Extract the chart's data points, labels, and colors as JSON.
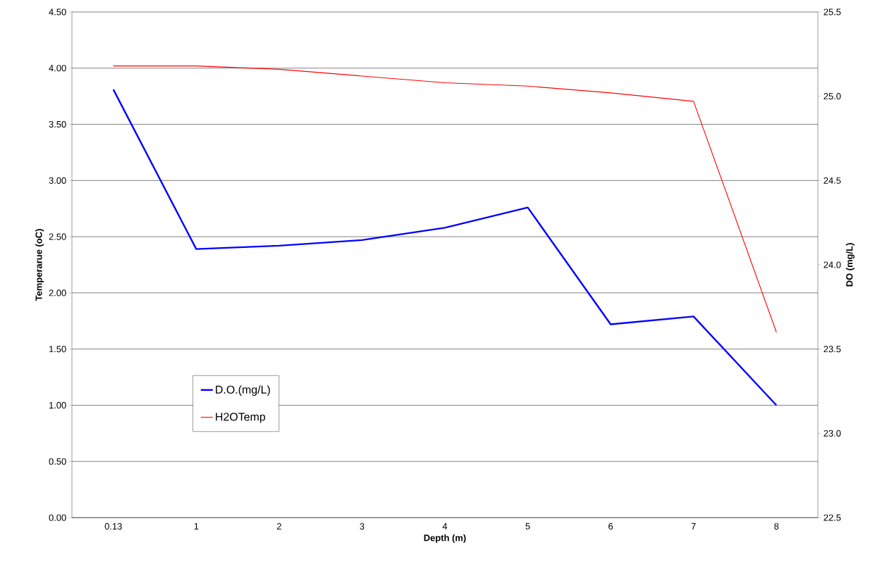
{
  "chart_data": {
    "type": "line",
    "xlabel": "Depth (m)",
    "ylabel": "Temperarue (oC)",
    "y2label": "DO (mg/L)",
    "categories": [
      "0.13",
      "1",
      "2",
      "3",
      "4",
      "5",
      "6",
      "7",
      "8"
    ],
    "series": [
      {
        "name": "D.O.(mg/L)",
        "color": "#0000ff",
        "values": [
          3.81,
          2.39,
          2.42,
          2.47,
          2.58,
          2.76,
          1.72,
          1.79,
          1.0
        ]
      },
      {
        "name": "H2OTemp",
        "color": "#ff0000",
        "axis": "y2",
        "values": [
          25.18,
          25.18,
          25.16,
          25.12,
          25.08,
          25.06,
          25.02,
          24.97,
          23.6
        ]
      }
    ],
    "ylim": [
      0,
      4.5
    ],
    "yticks": [
      {
        "value": 0,
        "label": "0.00"
      },
      {
        "value": 0.5,
        "label": "0.50"
      },
      {
        "value": 1,
        "label": "1.00"
      },
      {
        "value": 1.5,
        "label": "1.50"
      },
      {
        "value": 2,
        "label": "2.00"
      },
      {
        "value": 2.5,
        "label": "2.50"
      },
      {
        "value": 3,
        "label": "3.00"
      },
      {
        "value": 3.5,
        "label": "3.50"
      },
      {
        "value": 4,
        "label": "4.00"
      },
      {
        "value": 4.5,
        "label": "4.50"
      }
    ],
    "y2lim": [
      22.5,
      25.5
    ],
    "y2ticks": [
      {
        "value": 22.5,
        "label": "22.5"
      },
      {
        "value": 23,
        "label": "23.0"
      },
      {
        "value": 23.5,
        "label": "23.5"
      },
      {
        "value": 24,
        "label": "24.0"
      },
      {
        "value": 24.5,
        "label": "24.5"
      },
      {
        "value": 25,
        "label": "25.0"
      },
      {
        "value": 25.5,
        "label": "25.5"
      }
    ],
    "grid": "y",
    "legend": "left",
    "marker": "none",
    "line_style": "solid"
  }
}
